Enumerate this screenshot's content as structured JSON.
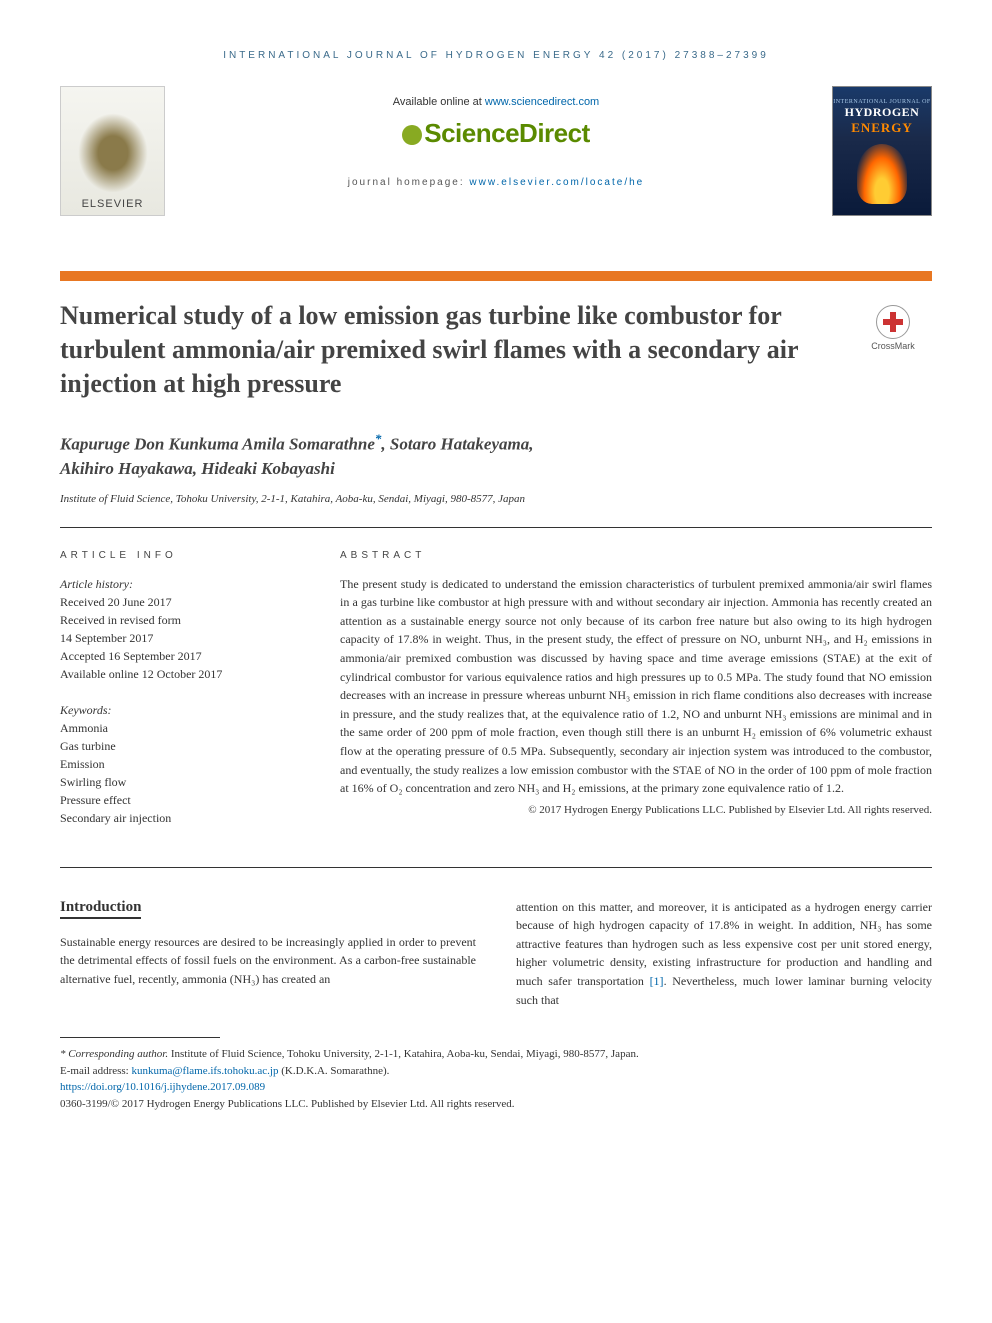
{
  "running_head": "INTERNATIONAL JOURNAL OF HYDROGEN ENERGY 42 (2017) 27388–27399",
  "header": {
    "available_prefix": "Available online at ",
    "available_link": "www.sciencedirect.com",
    "sd_logo": "ScienceDirect",
    "homepage_prefix": "journal homepage: ",
    "homepage_link": "www.elsevier.com/locate/he",
    "elsevier": "ELSEVIER",
    "cover_small": "INTERNATIONAL JOURNAL OF",
    "cover_big1": "HYDROGEN",
    "cover_big2": "ENERGY"
  },
  "colors": {
    "orange_bar": "#e87722",
    "link": "#0066aa",
    "sd_green": "#5a8a00",
    "head_blue": "#3a6a8a"
  },
  "title": "Numerical study of a low emission gas turbine like combustor for turbulent ammonia/air premixed swirl flames with a secondary air injection at high pressure",
  "crossmark": "CrossMark",
  "authors": {
    "line1": "Kapuruge Don Kunkuma Amila Somarathne",
    "sup": "*",
    "line1b": ", Sotaro Hatakeyama,",
    "line2": "Akihiro Hayakawa, Hideaki Kobayashi"
  },
  "affiliation": "Institute of Fluid Science, Tohoku University, 2-1-1, Katahira, Aoba-ku, Sendai, Miyagi, 980-8577, Japan",
  "article_info": {
    "heading": "ARTICLE INFO",
    "history_label": "Article history:",
    "received": "Received 20 June 2017",
    "revised1": "Received in revised form",
    "revised2": "14 September 2017",
    "accepted": "Accepted 16 September 2017",
    "online": "Available online 12 October 2017",
    "kw_label": "Keywords:",
    "keywords": [
      "Ammonia",
      "Gas turbine",
      "Emission",
      "Swirling flow",
      "Pressure effect",
      "Secondary air injection"
    ]
  },
  "abstract": {
    "heading": "ABSTRACT",
    "text": "The present study is dedicated to understand the emission characteristics of turbulent premixed ammonia/air swirl flames in a gas turbine like combustor at high pressure with and without secondary air injection. Ammonia has recently created an attention as a sustainable energy source not only because of its carbon free nature but also owing to its high hydrogen capacity of 17.8% in weight. Thus, in the present study, the effect of pressure on NO, unburnt NH₃, and H₂ emissions in ammonia/air premixed combustion was discussed by having space and time average emissions (STAE) at the exit of cylindrical combustor for various equivalence ratios and high pressures up to 0.5 MPa. The study found that NO emission decreases with an increase in pressure whereas unburnt NH₃ emission in rich flame conditions also decreases with increase in pressure, and the study realizes that, at the equivalence ratio of 1.2, NO and unburnt NH₃ emissions are minimal and in the same order of 200 ppm of mole fraction, even though still there is an unburnt H₂ emission of 6% volumetric exhaust flow at the operating pressure of 0.5 MPa. Subsequently, secondary air injection system was introduced to the combustor, and eventually, the study realizes a low emission combustor with the STAE of NO in the order of 100 ppm of mole fraction at 16% of O₂ concentration and zero NH₃ and H₂ emissions, at the primary zone equivalence ratio of 1.2.",
    "copyright": "© 2017 Hydrogen Energy Publications LLC. Published by Elsevier Ltd. All rights reserved."
  },
  "intro": {
    "heading": "Introduction",
    "col1": "Sustainable energy resources are desired to be increasingly applied in order to prevent the detrimental effects of fossil fuels on the environment. As a carbon-free sustainable alternative fuel, recently, ammonia (NH₃) has created an",
    "col2a": "attention on this matter, and moreover, it is anticipated as a hydrogen energy carrier because of high hydrogen capacity of 17.8% in weight. In addition, NH₃ has some attractive features than hydrogen such as less expensive cost per unit stored energy, higher volumetric density, existing infrastructure for production and handling and much safer transportation ",
    "ref1": "[1]",
    "col2b": ". Nevertheless, much lower laminar burning velocity such that"
  },
  "footnote": {
    "corr_label": "* Corresponding author.",
    "corr_text": " Institute of Fluid Science, Tohoku University, 2-1-1, Katahira, Aoba-ku, Sendai, Miyagi, 980-8577, Japan.",
    "email_label": "E-mail address: ",
    "email": "kunkuma@flame.ifs.tohoku.ac.jp",
    "email_suffix": " (K.D.K.A. Somarathne).",
    "doi": "https://doi.org/10.1016/j.ijhydene.2017.09.089",
    "issn_copy": "0360-3199/© 2017 Hydrogen Energy Publications LLC. Published by Elsevier Ltd. All rights reserved."
  }
}
